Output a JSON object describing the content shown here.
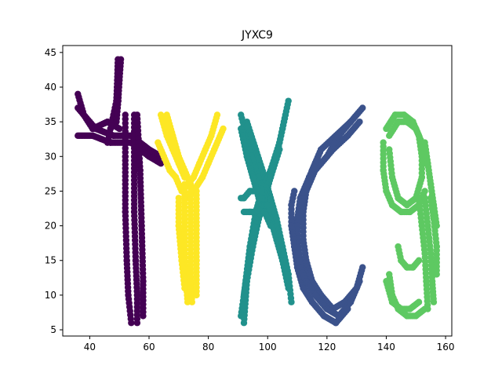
{
  "chart_data": {
    "type": "scatter",
    "title": "JYXC9",
    "xlabel": "",
    "ylabel": "",
    "xlim": [
      30.9,
      162.1
    ],
    "ylim": [
      4.1,
      46.0
    ],
    "xticks": [
      40,
      60,
      80,
      100,
      120,
      140,
      160
    ],
    "yticks": [
      5,
      10,
      15,
      20,
      25,
      30,
      35,
      40,
      45
    ],
    "grid": false,
    "legend": "none",
    "series": [
      {
        "color": "#440154",
        "strokes": [
          {
            "x": [
              36,
              42,
              48,
              54,
              60,
              64
            ],
            "y": [
              37,
              34,
              33,
              33,
              31,
              30
            ]
          },
          {
            "x": [
              36,
              41,
              47,
              54,
              60,
              64
            ],
            "y": [
              33,
              33,
              32,
              32,
              30,
              29
            ]
          },
          {
            "x": [
              36,
              38,
              41,
              46,
              50
            ],
            "y": [
              39,
              36,
              34,
              35,
              34
            ]
          },
          {
            "x": [
              49.5,
              49.3,
              49,
              48,
              47,
              46
            ],
            "y": [
              44,
              41,
              38,
              36,
              34,
              32
            ]
          },
          {
            "x": [
              50.5,
              50,
              49.6,
              49
            ],
            "y": [
              44,
              41,
              38,
              35
            ]
          },
          {
            "x": [
              52,
              52,
              52,
              52.5,
              53,
              54
            ],
            "y": [
              36,
              30,
              22,
              15,
              10,
              6
            ]
          },
          {
            "x": [
              55,
              55,
              55,
              55.5,
              56,
              56
            ],
            "y": [
              36,
              30,
              22,
              15,
              10,
              6
            ]
          },
          {
            "x": [
              56,
              57,
              57.5,
              58,
              58
            ],
            "y": [
              36,
              28,
              20,
              12,
              7
            ]
          }
        ]
      },
      {
        "color": "#fde725",
        "strokes": [
          {
            "x": [
              64,
              66,
              68,
              70,
              72
            ],
            "y": [
              36,
              33,
              31,
              29,
              27
            ]
          },
          {
            "x": [
              66,
              68,
              70,
              72,
              74
            ],
            "y": [
              36,
              33,
              30,
              28,
              26
            ]
          },
          {
            "x": [
              63,
              65,
              67,
              69,
              71
            ],
            "y": [
              32,
              30,
              28,
              27,
              25
            ]
          },
          {
            "x": [
              83,
              81,
              79,
              77,
              75,
              73
            ],
            "y": [
              36,
              33,
              31,
              29,
              27,
              26
            ]
          },
          {
            "x": [
              85,
              82,
              80,
              78,
              75,
              73
            ],
            "y": [
              34,
              31,
              29,
              27,
              25,
              24
            ]
          },
          {
            "x": [
              72,
              72,
              72,
              72.5,
              73
            ],
            "y": [
              26,
              21,
              16,
              12,
              9
            ]
          },
          {
            "x": [
              74,
              74,
              74,
              74,
              74.5
            ],
            "y": [
              26,
              21,
              16,
              12,
              9
            ]
          },
          {
            "x": [
              76,
              76,
              76,
              76
            ],
            "y": [
              25,
              20,
              15,
              10
            ]
          },
          {
            "x": [
              70,
              70,
              71,
              72
            ],
            "y": [
              24,
              20,
              15,
              11
            ]
          }
        ]
      },
      {
        "color": "#21918c",
        "strokes": [
          {
            "x": [
              91,
              94,
              97,
              99,
              101,
              103,
              105,
              107
            ],
            "y": [
              36,
              31,
              27,
              24,
              21,
              18,
              15,
              11
            ]
          },
          {
            "x": [
              93,
              96,
              99,
              101,
              103,
              105,
              107,
              108
            ],
            "y": [
              35,
              31,
              27,
              24,
              21,
              17,
              13,
              9
            ]
          },
          {
            "x": [
              91,
              93,
              95,
              97,
              99,
              101
            ],
            "y": [
              34,
              30,
              27,
              24,
              22,
              20
            ]
          },
          {
            "x": [
              107,
              105,
              103,
              101,
              99,
              97,
              95,
              93,
              91
            ],
            "y": [
              38,
              34,
              30,
              27,
              24,
              21,
              17,
              13,
              7
            ]
          },
          {
            "x": [
              106,
              104,
              101,
              98,
              96,
              94,
              92
            ],
            "y": [
              36,
              32,
              28,
              25,
              22,
              17,
              10
            ]
          },
          {
            "x": [
              104,
              101,
              98,
              96,
              95,
              93,
              92
            ],
            "y": [
              31,
              27,
              24,
              21,
              17,
              12,
              6
            ]
          },
          {
            "x": [
              91,
              92,
              94,
              96,
              98
            ],
            "y": [
              24,
              24,
              25,
              25,
              25
            ]
          },
          {
            "x": [
              92,
              94,
              96,
              98,
              100
            ],
            "y": [
              22,
              22,
              22,
              23,
              23
            ]
          }
        ]
      },
      {
        "color": "#3b528b",
        "strokes": [
          {
            "x": [
              132,
              128,
              123,
              118,
              115,
              113,
              112,
              112,
              113,
              115,
              118,
              122,
              126,
              130,
              132
            ],
            "y": [
              37,
              35,
              33,
              31,
              28,
              25,
              22,
              18,
              15,
              12,
              10,
              8,
              9,
              11,
              14
            ]
          },
          {
            "x": [
              131,
              127,
              122,
              118,
              114,
              111,
              110,
              110,
              111,
              113,
              116,
              120,
              124,
              128,
              131
            ],
            "y": [
              35,
              33,
              31,
              29,
              27,
              24,
              21,
              18,
              15,
              12,
              10,
              8,
              7,
              9,
              12
            ]
          },
          {
            "x": [
              128,
              124,
              120,
              116,
              113,
              111,
              109,
              109,
              110,
              112,
              115,
              119,
              123,
              127
            ],
            "y": [
              35,
              33,
              30,
              28,
              25,
              22,
              20,
              17,
              14,
              11,
              9,
              7,
              6,
              8
            ]
          },
          {
            "x": [
              118,
              116,
              114,
              112,
              111,
              110,
              110,
              111,
              113,
              116
            ],
            "y": [
              31,
              29,
              27,
              24,
              22,
              20,
              17,
              14,
              12,
              10
            ]
          },
          {
            "x": [
              109,
              108,
              108,
              109
            ],
            "y": [
              25,
              23,
              20,
              17
            ]
          }
        ]
      },
      {
        "color": "#5ec962",
        "strokes": [
          {
            "x": [
              140,
              143,
              146,
              149,
              151,
              152,
              152,
              150,
              147,
              144,
              142,
              141
            ],
            "y": [
              34,
              36,
              36,
              35,
              33,
              30,
              27,
              24,
              23,
              24,
              27,
              31
            ]
          },
          {
            "x": [
              141,
              144,
              147,
              150,
              152,
              153
            ],
            "y": [
              33,
              35,
              35,
              34,
              32,
              29
            ]
          },
          {
            "x": [
              139,
              139,
              140,
              142,
              145,
              148,
              151,
              153
            ],
            "y": [
              32,
              28,
              25,
              23,
              22,
              22,
              23,
              25
            ]
          },
          {
            "x": [
              153,
              154,
              155,
              156,
              157
            ],
            "y": [
              32,
              29,
              26,
              23,
              20
            ]
          },
          {
            "x": [
              151,
              152,
              153,
              153.5,
              154
            ],
            "y": [
              24,
              20,
              16,
              12,
              8
            ]
          },
          {
            "x": [
              153,
              154,
              155,
              155.5,
              156
            ],
            "y": [
              24,
              20,
              16,
              12,
              9
            ]
          },
          {
            "x": [
              155,
              156,
              157,
              157
            ],
            "y": [
              24,
              21,
              17,
              13
            ]
          },
          {
            "x": [
              141,
              142,
              144,
              147,
              150,
              153
            ],
            "y": [
              13,
              10,
              8,
              7,
              7,
              8
            ]
          },
          {
            "x": [
              140,
              142,
              145,
              148,
              151
            ],
            "y": [
              12,
              9,
              8,
              8,
              9
            ]
          },
          {
            "x": [
              144,
              145,
              147,
              149,
              151
            ],
            "y": [
              17,
              15,
              14,
              14,
              15
            ]
          }
        ]
      }
    ]
  }
}
